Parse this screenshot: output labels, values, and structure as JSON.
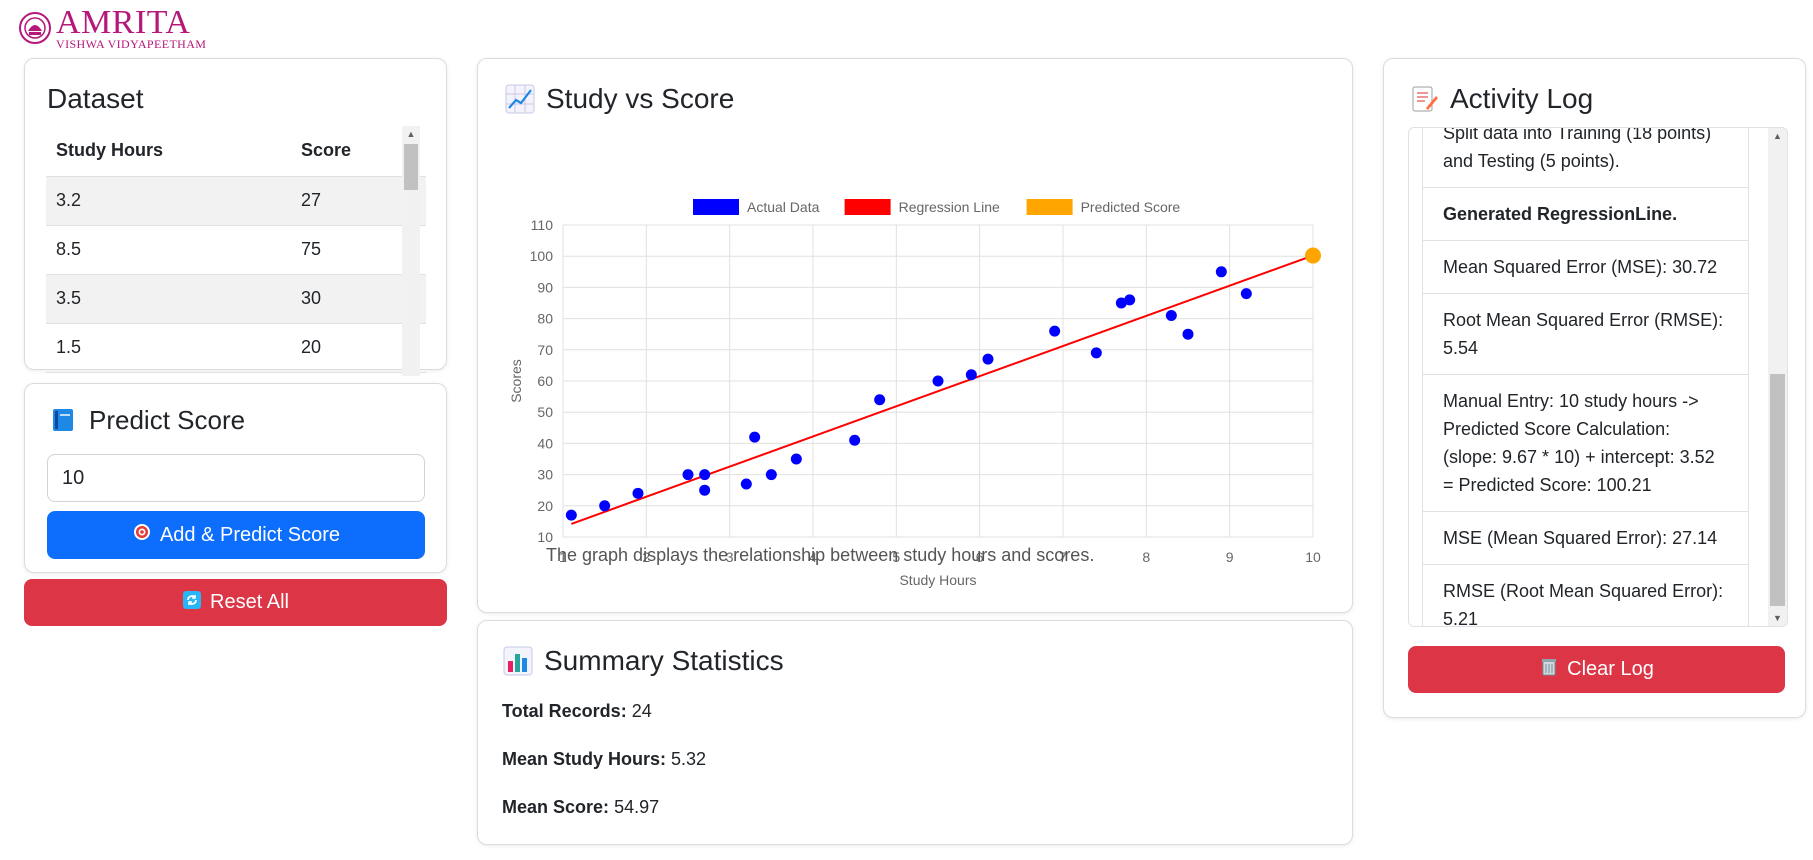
{
  "logo": {
    "name": "AMRITA",
    "subtitle": "VISHWA VIDYAPEETHAM"
  },
  "dataset": {
    "title": "Dataset",
    "columns": [
      "Study Hours",
      "Score"
    ],
    "rows": [
      [
        "3.2",
        "27"
      ],
      [
        "8.5",
        "75"
      ],
      [
        "3.5",
        "30"
      ],
      [
        "1.5",
        "20"
      ],
      [
        "",
        ""
      ]
    ]
  },
  "predict": {
    "title": "Predict Score",
    "input_value": "10",
    "button_label": "Add & Predict Score"
  },
  "reset": {
    "label": "Reset All"
  },
  "chart": {
    "title": "Study vs Score",
    "caption": "The graph displays the relationship between study hours and scores."
  },
  "chart_data": {
    "type": "scatter",
    "xlabel": "Study Hours",
    "ylabel": "Scores",
    "xlim": [
      1,
      10
    ],
    "ylim": [
      10,
      110
    ],
    "xticks": [
      1,
      2,
      3,
      4,
      5,
      6,
      7,
      8,
      9,
      10
    ],
    "yticks": [
      10,
      20,
      30,
      40,
      50,
      60,
      70,
      80,
      90,
      100,
      110
    ],
    "grid": true,
    "legend_position": "top",
    "series": [
      {
        "name": "Actual Data",
        "color": "#0000ff",
        "type": "scatter",
        "points": [
          [
            1.1,
            17
          ],
          [
            1.5,
            20
          ],
          [
            1.9,
            24
          ],
          [
            2.5,
            30
          ],
          [
            2.7,
            30
          ],
          [
            2.7,
            25
          ],
          [
            3.2,
            27
          ],
          [
            3.3,
            42
          ],
          [
            3.5,
            30
          ],
          [
            3.8,
            35
          ],
          [
            4.5,
            41
          ],
          [
            4.8,
            54
          ],
          [
            5.5,
            60
          ],
          [
            5.9,
            62
          ],
          [
            6.1,
            67
          ],
          [
            6.9,
            76
          ],
          [
            7.4,
            69
          ],
          [
            7.7,
            85
          ],
          [
            7.8,
            86
          ],
          [
            8.3,
            81
          ],
          [
            8.5,
            75
          ],
          [
            8.9,
            95
          ],
          [
            9.2,
            88
          ]
        ]
      },
      {
        "name": "Regression Line",
        "color": "#ff0000",
        "type": "line",
        "points": [
          [
            1.1,
            14.2
          ],
          [
            10,
            100.21
          ]
        ]
      },
      {
        "name": "Predicted Score",
        "color": "#ffa500",
        "type": "scatter",
        "points": [
          [
            10,
            100.21
          ]
        ]
      }
    ]
  },
  "summary": {
    "title": "Summary Statistics",
    "items": [
      {
        "label": "Total Records:",
        "value": "24"
      },
      {
        "label": "Mean Study Hours:",
        "value": "5.32"
      },
      {
        "label": "Mean Score:",
        "value": "54.97"
      }
    ]
  },
  "activity": {
    "title": "Activity Log",
    "items": [
      {
        "text": "Split data into Training (18 points) and Testing (5 points).",
        "bold": false
      },
      {
        "text": "Generated RegressionLine.",
        "bold": true
      },
      {
        "text": "Mean Squared Error (MSE): 30.72",
        "bold": false
      },
      {
        "text": "Root Mean Squared Error (RMSE): 5.54",
        "bold": false
      },
      {
        "text": "Manual Entry: 10 study hours -> Predicted Score Calculation: (slope: 9.67 * 10) + intercept: 3.52 = Predicted Score: 100.21",
        "bold": false
      },
      {
        "text": "MSE (Mean Squared Error): 27.14",
        "bold": false
      },
      {
        "text": "RMSE (Root Mean Squared Error): 5.21",
        "bold": false
      }
    ],
    "clear_label": "Clear Log"
  },
  "colors": {
    "brand": "#b5177a",
    "primary": "#0d6efd",
    "danger": "#dc3545"
  }
}
